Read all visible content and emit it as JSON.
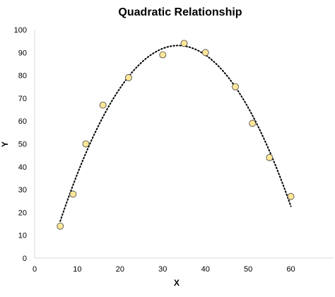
{
  "chart_data": {
    "type": "scatter",
    "title": "Quadratic Relationship",
    "xlabel": "X",
    "ylabel": "Y",
    "xlim": [
      0,
      70
    ],
    "ylim": [
      0,
      100
    ],
    "xticks": [
      0,
      10,
      20,
      30,
      40,
      50,
      60
    ],
    "yticks": [
      0,
      10,
      20,
      30,
      40,
      50,
      60,
      70,
      80,
      90,
      100
    ],
    "grid": false,
    "legend": "none",
    "points": [
      {
        "x": 6,
        "y": 14
      },
      {
        "x": 9,
        "y": 28
      },
      {
        "x": 12,
        "y": 50
      },
      {
        "x": 16,
        "y": 67
      },
      {
        "x": 22,
        "y": 79
      },
      {
        "x": 30,
        "y": 89
      },
      {
        "x": 35,
        "y": 94
      },
      {
        "x": 40,
        "y": 90
      },
      {
        "x": 47,
        "y": 75
      },
      {
        "x": 51,
        "y": 59
      },
      {
        "x": 55,
        "y": 44
      },
      {
        "x": 60,
        "y": 27
      }
    ],
    "trendline": {
      "type": "polynomial",
      "order": 2,
      "style": "dotted",
      "x_range": [
        6,
        60
      ]
    },
    "colors": {
      "marker_fill": "#FFE699",
      "marker_stroke": "#404040",
      "trendline": "#000000",
      "axis": "#D9D9D9",
      "text": "#000000"
    }
  }
}
